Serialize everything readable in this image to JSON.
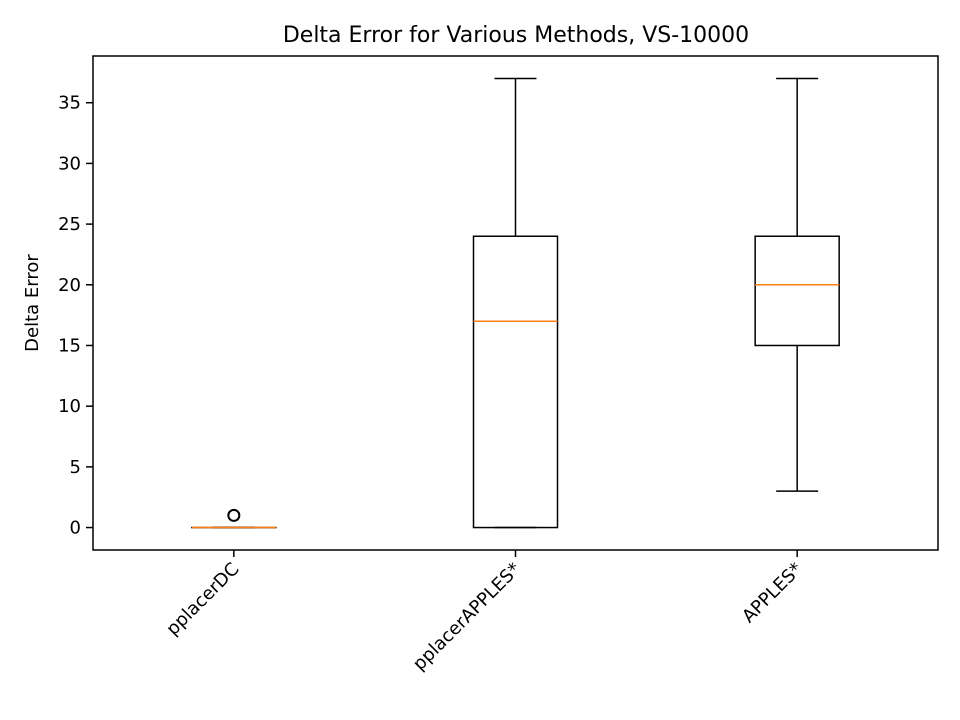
{
  "chart_data": {
    "type": "box",
    "title": "Delta Error for Various Methods, VS-10000",
    "xlabel": "",
    "ylabel": "Delta Error",
    "ylim": [
      -1.85,
      38.85
    ],
    "yticks": [
      0,
      5,
      10,
      15,
      20,
      25,
      30,
      35
    ],
    "grid": false,
    "categories": [
      "pplacerDC",
      "pplacerAPPLES*",
      "APPLES*"
    ],
    "boxes": [
      {
        "whisker_low": 0,
        "q1": 0,
        "median": 0,
        "q3": 0,
        "whisker_high": 0,
        "outliers": [
          1
        ]
      },
      {
        "whisker_low": 0,
        "q1": 0,
        "median": 17,
        "q3": 24,
        "whisker_high": 37,
        "outliers": []
      },
      {
        "whisker_low": 3,
        "q1": 15,
        "median": 20,
        "q3": 24,
        "whisker_high": 37,
        "outliers": []
      }
    ],
    "colors": {
      "box": "#000000",
      "median": "#ff7f0e"
    }
  }
}
